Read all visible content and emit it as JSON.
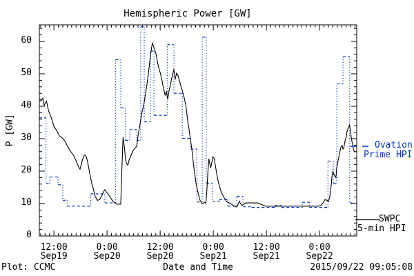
{
  "header": {
    "title": "Hemispheric Power [GW]"
  },
  "axes": {
    "ylabel": "P [GW]",
    "xlabel": "Date and Time"
  },
  "footer": {
    "credit": "Plot: CCMC",
    "timestamp": "2015/09/22 09:05:08"
  },
  "legend": {
    "ovation": {
      "line1": "Ovation",
      "line2": "Prime HPI",
      "marker": "dashed-line",
      "color": "#0033cc"
    },
    "swpc": {
      "line1": "SWPC",
      "line2": "5-min HPI",
      "marker": "solid-line",
      "color": "#000000"
    }
  },
  "chart_data": {
    "type": "line",
    "title": "Hemispheric Power [GW]",
    "xlabel": "Date and Time",
    "ylabel": "P [GW]",
    "x_unit": "hours since 2015-09-19 00:00 UT",
    "xlim": [
      8.7,
      80.4
    ],
    "ylim": [
      0,
      65.1
    ],
    "grid": false,
    "legend_position": "right-outside",
    "y_ticks": [
      0,
      10,
      20,
      30,
      40,
      50,
      60
    ],
    "y_minor_step": 2,
    "x_minor_step_hours": 1,
    "x_ticks": [
      {
        "t": 12,
        "time": "12:00",
        "date": "Sep19"
      },
      {
        "t": 24,
        "time": "0:00",
        "date": "Sep20"
      },
      {
        "t": 36,
        "time": "12:00",
        "date": "Sep20"
      },
      {
        "t": 48,
        "time": "0:00",
        "date": "Sep21"
      },
      {
        "t": 60,
        "time": "12:00",
        "date": "Sep21"
      },
      {
        "t": 72,
        "time": "0:00",
        "date": "Sep22"
      }
    ],
    "series": [
      {
        "name": "SWPC 5-min HPI",
        "type": "line",
        "style": "solid",
        "color": "#000000",
        "points": [
          [
            8.7,
            41.5
          ],
          [
            9.2,
            41.8
          ],
          [
            9.5,
            42.5
          ],
          [
            9.8,
            40.3
          ],
          [
            10.3,
            41.6
          ],
          [
            10.8,
            38.5
          ],
          [
            11.4,
            36.5
          ],
          [
            12.0,
            33.8
          ],
          [
            12.6,
            32.6
          ],
          [
            13.2,
            30.9
          ],
          [
            13.9,
            30.2
          ],
          [
            14.5,
            29.2
          ],
          [
            15.1,
            27.6
          ],
          [
            15.7,
            26.2
          ],
          [
            16.4,
            24.9
          ],
          [
            17.0,
            23.2
          ],
          [
            17.6,
            21.2
          ],
          [
            17.9,
            20.6
          ],
          [
            18.3,
            22.8
          ],
          [
            18.7,
            24.6
          ],
          [
            19.0,
            25.0
          ],
          [
            19.3,
            24.4
          ],
          [
            19.6,
            23.0
          ],
          [
            19.9,
            20.6
          ],
          [
            20.3,
            17.8
          ],
          [
            20.6,
            16.0
          ],
          [
            20.9,
            14.5
          ],
          [
            21.3,
            12.3
          ],
          [
            21.8,
            11.0
          ],
          [
            22.3,
            11.2
          ],
          [
            22.8,
            12.4
          ],
          [
            23.2,
            13.6
          ],
          [
            23.5,
            14.3
          ],
          [
            23.8,
            13.6
          ],
          [
            24.3,
            12.8
          ],
          [
            24.8,
            11.8
          ],
          [
            25.2,
            10.9
          ],
          [
            25.7,
            10.2
          ],
          [
            26.2,
            9.8
          ],
          [
            27.1,
            9.8
          ],
          [
            27.35,
            21.0
          ],
          [
            27.6,
            30.4
          ],
          [
            27.9,
            27.5
          ],
          [
            28.2,
            23.5
          ],
          [
            28.4,
            22.4
          ],
          [
            28.7,
            21.8
          ],
          [
            29.0,
            23.5
          ],
          [
            29.5,
            25.2
          ],
          [
            29.9,
            26.4
          ],
          [
            30.4,
            27.2
          ],
          [
            30.7,
            27.6
          ],
          [
            31.0,
            31.0
          ],
          [
            31.3,
            33.2
          ],
          [
            31.8,
            37.5
          ],
          [
            32.3,
            40.5
          ],
          [
            32.7,
            44.0
          ],
          [
            33.2,
            48.5
          ],
          [
            33.5,
            52.0
          ],
          [
            33.8,
            55.5
          ],
          [
            34.0,
            57.5
          ],
          [
            34.1,
            58.6
          ],
          [
            34.3,
            59.6
          ],
          [
            34.4,
            58.8
          ],
          [
            34.8,
            57.3
          ],
          [
            35.1,
            55.8
          ],
          [
            35.4,
            53.6
          ],
          [
            35.7,
            51.8
          ],
          [
            36.0,
            50.4
          ],
          [
            36.3,
            48.7
          ],
          [
            36.6,
            46.5
          ],
          [
            36.8,
            45.3
          ],
          [
            37.1,
            43.4
          ],
          [
            37.4,
            44.5
          ],
          [
            37.7,
            42.2
          ],
          [
            38.0,
            44.8
          ],
          [
            38.3,
            46.5
          ],
          [
            38.6,
            48.6
          ],
          [
            39.0,
            50.8
          ],
          [
            39.1,
            51.4
          ],
          [
            39.4,
            48.3
          ],
          [
            39.7,
            50.2
          ],
          [
            40.0,
            49.6
          ],
          [
            40.4,
            47.6
          ],
          [
            40.8,
            45.7
          ],
          [
            41.3,
            43.4
          ],
          [
            41.8,
            40.2
          ],
          [
            42.2,
            35.8
          ],
          [
            42.7,
            31.2
          ],
          [
            43.2,
            26.3
          ],
          [
            43.6,
            21.3
          ],
          [
            44.1,
            16.3
          ],
          [
            44.6,
            13.1
          ],
          [
            45.0,
            11.0
          ],
          [
            45.5,
            9.9
          ],
          [
            46.0,
            10.4
          ],
          [
            46.3,
            10.1
          ],
          [
            46.5,
            13.0
          ],
          [
            46.8,
            20.0
          ],
          [
            47.0,
            23.8
          ],
          [
            47.2,
            22.2
          ],
          [
            47.4,
            21.0
          ],
          [
            47.7,
            22.8
          ],
          [
            47.9,
            24.4
          ],
          [
            48.2,
            23.9
          ],
          [
            48.5,
            21.5
          ],
          [
            48.8,
            18.9
          ],
          [
            49.1,
            16.8
          ],
          [
            49.4,
            15.3
          ],
          [
            49.7,
            14.0
          ],
          [
            50.0,
            12.9
          ],
          [
            50.5,
            11.7
          ],
          [
            51.0,
            10.6
          ],
          [
            51.4,
            10.3
          ],
          [
            51.9,
            10.0
          ],
          [
            52.4,
            9.5
          ],
          [
            52.8,
            9.2
          ],
          [
            53.3,
            8.9
          ],
          [
            53.6,
            9.8
          ],
          [
            53.9,
            10.7
          ],
          [
            54.2,
            9.9
          ],
          [
            54.5,
            9.4
          ],
          [
            54.9,
            9.8
          ],
          [
            55.3,
            10.2
          ],
          [
            58.0,
            10.2
          ],
          [
            59.1,
            9.6
          ],
          [
            59.8,
            9.2
          ],
          [
            71.8,
            9.2
          ],
          [
            72.3,
            9.4
          ],
          [
            72.8,
            10.2
          ],
          [
            73.2,
            11.2
          ],
          [
            73.7,
            11.0
          ],
          [
            74.0,
            10.6
          ],
          [
            74.3,
            12.0
          ],
          [
            74.6,
            15.2
          ],
          [
            74.8,
            18.3
          ],
          [
            75.0,
            19.9
          ],
          [
            75.3,
            18.9
          ],
          [
            75.5,
            18.3
          ],
          [
            75.7,
            18.0
          ],
          [
            75.9,
            21.2
          ],
          [
            76.2,
            23.3
          ],
          [
            76.5,
            25.4
          ],
          [
            76.8,
            27.3
          ],
          [
            77.1,
            27.9
          ],
          [
            77.3,
            26.8
          ],
          [
            77.5,
            27.4
          ],
          [
            77.8,
            29.6
          ],
          [
            78.0,
            30.4
          ],
          [
            78.2,
            32.2
          ],
          [
            78.5,
            33.3
          ],
          [
            78.8,
            34.2
          ],
          [
            79.0,
            32.2
          ],
          [
            79.2,
            30.0
          ],
          [
            79.5,
            28.0
          ],
          [
            79.7,
            26.5
          ],
          [
            79.9,
            25.8
          ]
        ]
      },
      {
        "name": "Ovation Prime HPI",
        "type": "step",
        "style": "dashed",
        "color": "#0033cc",
        "steps": [
          [
            8.7,
            10.2,
            36.4
          ],
          [
            10.2,
            11.1,
            16.2
          ],
          [
            11.1,
            12.9,
            18.2
          ],
          [
            12.9,
            14.0,
            15.8
          ],
          [
            14.0,
            15.0,
            11.0
          ],
          [
            15.0,
            20.3,
            9.2
          ],
          [
            20.3,
            23.5,
            13.0
          ],
          [
            23.5,
            25.9,
            10.2
          ],
          [
            25.9,
            27.1,
            54.4
          ],
          [
            27.1,
            28.1,
            39.5
          ],
          [
            28.1,
            29.1,
            29.5
          ],
          [
            29.1,
            30.7,
            32.8
          ],
          [
            30.7,
            31.6,
            29.5
          ],
          [
            31.6,
            32.4,
            64.5
          ],
          [
            32.4,
            33.8,
            35.2
          ],
          [
            33.8,
            34.6,
            57.0
          ],
          [
            34.6,
            37.6,
            37.2
          ],
          [
            37.6,
            39.1,
            59.0
          ],
          [
            39.1,
            41.0,
            44.0
          ],
          [
            41.0,
            42.9,
            30.1
          ],
          [
            42.9,
            44.3,
            26.8
          ],
          [
            44.3,
            45.5,
            10.5
          ],
          [
            45.5,
            46.4,
            61.3
          ],
          [
            46.4,
            47.8,
            16.3
          ],
          [
            47.8,
            49.4,
            10.7
          ],
          [
            49.4,
            51.3,
            11.2
          ],
          [
            51.3,
            53.3,
            9.2
          ],
          [
            53.3,
            54.7,
            12.2
          ],
          [
            54.7,
            56.7,
            9.0
          ],
          [
            56.7,
            61.9,
            8.8
          ],
          [
            61.9,
            63.4,
            9.4
          ],
          [
            63.4,
            68.1,
            8.8
          ],
          [
            68.1,
            69.7,
            10.4
          ],
          [
            69.7,
            73.9,
            8.8
          ],
          [
            73.9,
            75.1,
            23.1
          ],
          [
            75.1,
            75.9,
            16.2
          ],
          [
            75.9,
            77.3,
            46.9
          ],
          [
            77.3,
            78.8,
            55.3
          ],
          [
            78.8,
            80.1,
            10.2
          ]
        ]
      }
    ]
  }
}
